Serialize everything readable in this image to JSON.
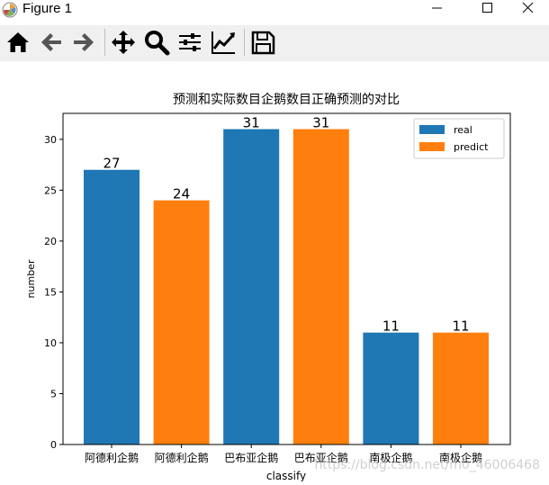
{
  "window": {
    "title": "Figure 1",
    "minimize_icon": "minimize-icon",
    "maximize_icon": "maximize-icon",
    "close_icon": "close-icon"
  },
  "toolbar": {
    "buttons": [
      {
        "name": "home-icon",
        "tooltip": "Home"
      },
      {
        "name": "back-arrow-icon",
        "tooltip": "Back"
      },
      {
        "name": "forward-arrow-icon",
        "tooltip": "Forward"
      },
      {
        "name": "pan-icon",
        "tooltip": "Pan"
      },
      {
        "name": "zoom-icon",
        "tooltip": "Zoom"
      },
      {
        "name": "subplots-icon",
        "tooltip": "Subplots"
      },
      {
        "name": "edit-axis-icon",
        "tooltip": "Customize"
      },
      {
        "name": "save-icon",
        "tooltip": "Save"
      }
    ]
  },
  "watermark": "https://blog.csdn.net/m0_46006468",
  "chart_data": {
    "type": "bar",
    "title": "预测和实际数目企鹅数目正确预测的对比",
    "xlabel": "classify",
    "ylabel": "number",
    "categories": [
      "阿德利企鹅",
      "阿德利企鹅",
      "巴布亚企鹅",
      "巴布亚企鹅",
      "南极企鹅",
      "南极企鹅"
    ],
    "values": [
      27,
      24,
      31,
      31,
      11,
      11
    ],
    "bar_series": [
      "real",
      "predict",
      "real",
      "predict",
      "real",
      "predict"
    ],
    "data_labels": [
      "27",
      "24",
      "31",
      "31",
      "11",
      "11"
    ],
    "series": [
      {
        "name": "real",
        "color": "#1f77b4"
      },
      {
        "name": "predict",
        "color": "#ff7f0e"
      }
    ],
    "yticks": [
      0,
      5,
      10,
      15,
      20,
      25,
      30
    ],
    "ylim": [
      0,
      32.55
    ],
    "grid": false,
    "legend_position": "top-right"
  }
}
